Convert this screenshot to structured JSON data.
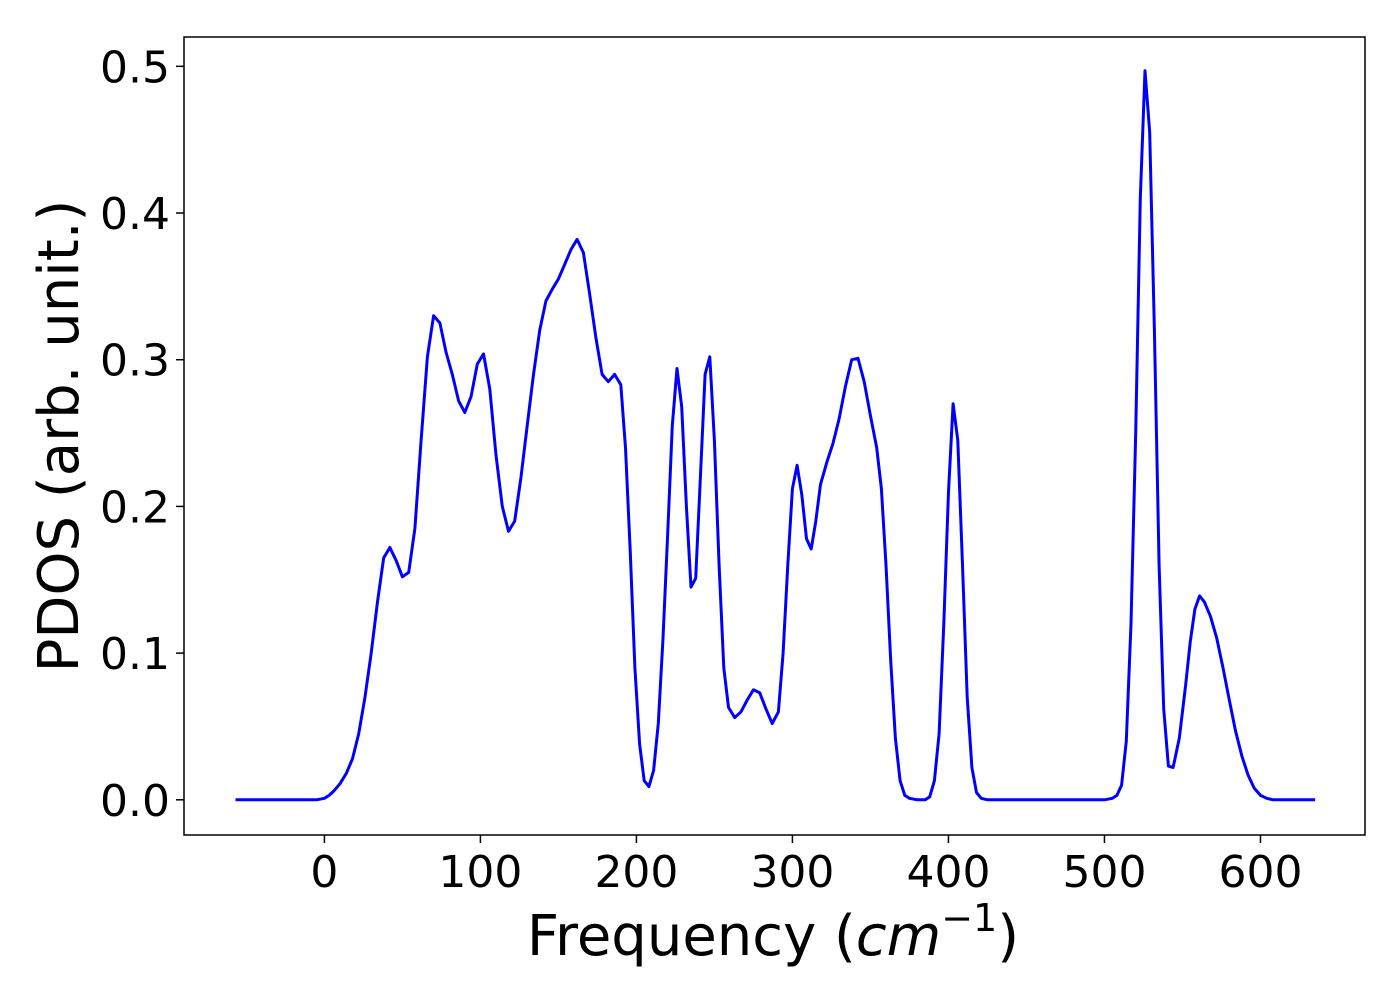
{
  "chart_data": {
    "type": "line",
    "title": "",
    "xlabel_main": "Frequency (",
    "xlabel_unit": "cm",
    "xlabel_exp": "−1",
    "xlabel_close": ")",
    "ylabel": "PDOS (arb. unit.)",
    "xlim": [
      -90,
      667
    ],
    "ylim": [
      -0.024,
      0.52
    ],
    "x_ticks": [
      0,
      100,
      200,
      300,
      400,
      500,
      600
    ],
    "y_ticks": [
      0.0,
      0.1,
      0.2,
      0.3,
      0.4,
      0.5
    ],
    "y_tick_labels": [
      "0.0",
      "0.1",
      "0.2",
      "0.3",
      "0.4",
      "0.5"
    ],
    "grid": false,
    "series": [
      {
        "color": "#0000ff",
        "points": [
          [
            -57,
            0
          ],
          [
            -40,
            0
          ],
          [
            -20,
            0
          ],
          [
            -5,
            0
          ],
          [
            0,
            0.001
          ],
          [
            3,
            0.003
          ],
          [
            6,
            0.006
          ],
          [
            10,
            0.011
          ],
          [
            14,
            0.018
          ],
          [
            18,
            0.028
          ],
          [
            22,
            0.045
          ],
          [
            26,
            0.07
          ],
          [
            30,
            0.1
          ],
          [
            34,
            0.135
          ],
          [
            38,
            0.165
          ],
          [
            42,
            0.172
          ],
          [
            46,
            0.163
          ],
          [
            50,
            0.152
          ],
          [
            54,
            0.155
          ],
          [
            58,
            0.185
          ],
          [
            62,
            0.245
          ],
          [
            66,
            0.302
          ],
          [
            70,
            0.33
          ],
          [
            74,
            0.325
          ],
          [
            78,
            0.305
          ],
          [
            82,
            0.29
          ],
          [
            86,
            0.272
          ],
          [
            90,
            0.264
          ],
          [
            94,
            0.275
          ],
          [
            98,
            0.297
          ],
          [
            102,
            0.304
          ],
          [
            106,
            0.28
          ],
          [
            110,
            0.235
          ],
          [
            114,
            0.2
          ],
          [
            118,
            0.183
          ],
          [
            122,
            0.19
          ],
          [
            126,
            0.22
          ],
          [
            130,
            0.255
          ],
          [
            134,
            0.29
          ],
          [
            138,
            0.32
          ],
          [
            142,
            0.34
          ],
          [
            146,
            0.348
          ],
          [
            150,
            0.355
          ],
          [
            154,
            0.365
          ],
          [
            158,
            0.375
          ],
          [
            162,
            0.382
          ],
          [
            166,
            0.373
          ],
          [
            170,
            0.345
          ],
          [
            174,
            0.315
          ],
          [
            178,
            0.29
          ],
          [
            182,
            0.285
          ],
          [
            186,
            0.29
          ],
          [
            190,
            0.283
          ],
          [
            193,
            0.24
          ],
          [
            196,
            0.17
          ],
          [
            199,
            0.09
          ],
          [
            202,
            0.038
          ],
          [
            205,
            0.013
          ],
          [
            208,
            0.009
          ],
          [
            211,
            0.02
          ],
          [
            214,
            0.052
          ],
          [
            217,
            0.11
          ],
          [
            220,
            0.18
          ],
          [
            223,
            0.255
          ],
          [
            226,
            0.294
          ],
          [
            229,
            0.268
          ],
          [
            232,
            0.2
          ],
          [
            235,
            0.145
          ],
          [
            238,
            0.151
          ],
          [
            241,
            0.22
          ],
          [
            244,
            0.29
          ],
          [
            247,
            0.302
          ],
          [
            250,
            0.245
          ],
          [
            253,
            0.16
          ],
          [
            256,
            0.09
          ],
          [
            259,
            0.063
          ],
          [
            263,
            0.056
          ],
          [
            267,
            0.06
          ],
          [
            271,
            0.068
          ],
          [
            275,
            0.075
          ],
          [
            279,
            0.073
          ],
          [
            283,
            0.062
          ],
          [
            287,
            0.052
          ],
          [
            291,
            0.06
          ],
          [
            294,
            0.1
          ],
          [
            297,
            0.16
          ],
          [
            300,
            0.212
          ],
          [
            303,
            0.228
          ],
          [
            306,
            0.208
          ],
          [
            309,
            0.178
          ],
          [
            312,
            0.171
          ],
          [
            315,
            0.19
          ],
          [
            318,
            0.215
          ],
          [
            322,
            0.23
          ],
          [
            326,
            0.243
          ],
          [
            330,
            0.26
          ],
          [
            334,
            0.282
          ],
          [
            338,
            0.3
          ],
          [
            342,
            0.301
          ],
          [
            346,
            0.285
          ],
          [
            350,
            0.262
          ],
          [
            354,
            0.24
          ],
          [
            357,
            0.212
          ],
          [
            360,
            0.16
          ],
          [
            363,
            0.095
          ],
          [
            366,
            0.042
          ],
          [
            369,
            0.013
          ],
          [
            372,
            0.003
          ],
          [
            375,
            0.001
          ],
          [
            380,
            0
          ],
          [
            385,
            0
          ],
          [
            388,
            0.002
          ],
          [
            391,
            0.013
          ],
          [
            394,
            0.045
          ],
          [
            397,
            0.12
          ],
          [
            400,
            0.21
          ],
          [
            403,
            0.27
          ],
          [
            406,
            0.245
          ],
          [
            409,
            0.16
          ],
          [
            412,
            0.07
          ],
          [
            415,
            0.022
          ],
          [
            418,
            0.005
          ],
          [
            421,
            0.001
          ],
          [
            425,
            0
          ],
          [
            450,
            0
          ],
          [
            480,
            0
          ],
          [
            500,
            0
          ],
          [
            505,
            0.001
          ],
          [
            508,
            0.003
          ],
          [
            511,
            0.01
          ],
          [
            514,
            0.04
          ],
          [
            517,
            0.12
          ],
          [
            520,
            0.25
          ],
          [
            523,
            0.41
          ],
          [
            526,
            0.497
          ],
          [
            529,
            0.455
          ],
          [
            532,
            0.32
          ],
          [
            535,
            0.16
          ],
          [
            538,
            0.062
          ],
          [
            541,
            0.023
          ],
          [
            544,
            0.022
          ],
          [
            548,
            0.042
          ],
          [
            552,
            0.078
          ],
          [
            555,
            0.108
          ],
          [
            558,
            0.13
          ],
          [
            561,
            0.139
          ],
          [
            564,
            0.135
          ],
          [
            568,
            0.125
          ],
          [
            572,
            0.11
          ],
          [
            576,
            0.09
          ],
          [
            580,
            0.068
          ],
          [
            584,
            0.047
          ],
          [
            588,
            0.03
          ],
          [
            592,
            0.017
          ],
          [
            596,
            0.008
          ],
          [
            600,
            0.003
          ],
          [
            604,
            0.001
          ],
          [
            608,
            0
          ],
          [
            620,
            0
          ],
          [
            635,
            0
          ]
        ]
      }
    ]
  }
}
